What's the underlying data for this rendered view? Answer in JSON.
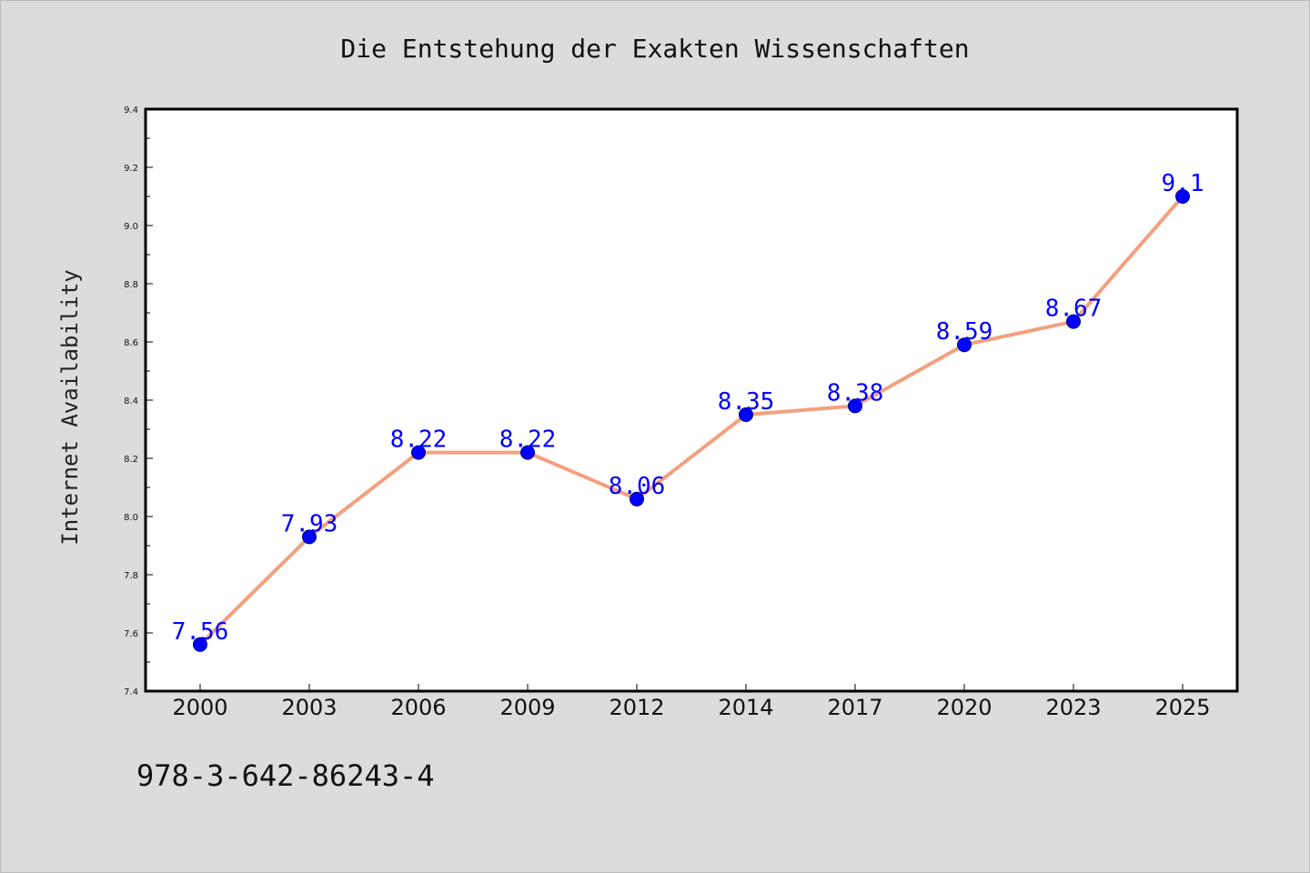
{
  "title": "Die Entstehung der Exakten Wissenschaften",
  "footer_text": "978-3-642-86243-4",
  "colors": {
    "background": "#dcdcdc",
    "plot_background": "#ffffff",
    "line": "#f4a07e",
    "marker": "#0000ff",
    "label": "#0000ff"
  },
  "chart_data": {
    "type": "line",
    "title": "Die Entstehung der Exakten Wissenschaften",
    "xlabel": "",
    "ylabel": "Internet Availability",
    "categories": [
      "2000",
      "2003",
      "2006",
      "2009",
      "2012",
      "2014",
      "2017",
      "2020",
      "2023",
      "2025"
    ],
    "series": [
      {
        "values": [
          7.56,
          7.93,
          8.22,
          8.22,
          8.06,
          8.35,
          8.38,
          8.59,
          8.67,
          9.1
        ]
      }
    ],
    "data_labels": [
      "7.56",
      "7.93",
      "8.22",
      "8.22",
      "8.06",
      "8.35",
      "8.38",
      "8.59",
      "8.67",
      "9.1"
    ],
    "ylim": [
      7.4,
      9.4
    ],
    "yticks": [
      "7.4",
      "7.6",
      "7.8",
      "8.0",
      "8.2",
      "8.4",
      "8.6",
      "8.8",
      "9.0",
      "9.2",
      "9.4"
    ],
    "grid": false,
    "legend": "none"
  }
}
